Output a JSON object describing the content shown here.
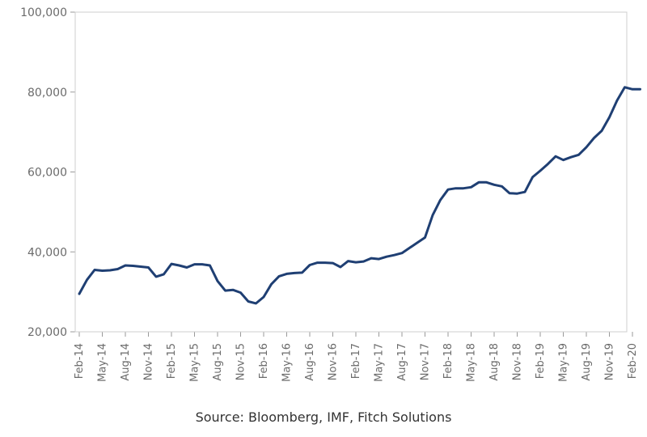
{
  "chart_data": {
    "type": "line",
    "title": "",
    "xlabel": "",
    "ylabel": "",
    "ylim": [
      20000,
      100000
    ],
    "yticks": [
      "20,000",
      "40,000",
      "60,000",
      "80,000",
      "100,000"
    ],
    "ytick_values": [
      20000,
      40000,
      60000,
      80000,
      100000
    ],
    "xticks": [
      "Feb-14",
      "May-14",
      "Aug-14",
      "Nov-14",
      "Feb-15",
      "May-15",
      "Aug-15",
      "Nov-15",
      "Feb-16",
      "May-16",
      "Aug-16",
      "Nov-16",
      "Feb-17",
      "May-17",
      "Aug-17",
      "Nov-17",
      "Feb-18",
      "May-18",
      "Aug-18",
      "Nov-18",
      "Feb-19",
      "May-19",
      "Aug-19",
      "Nov-19",
      "Feb-20"
    ],
    "grid": false,
    "line_color": "#1f3f73",
    "series": [
      {
        "x": [
          "Feb-14",
          "Mar-14",
          "Apr-14",
          "May-14",
          "Jun-14",
          "Jul-14",
          "Aug-14",
          "Sep-14",
          "Oct-14",
          "Nov-14",
          "Dec-14",
          "Jan-15",
          "Feb-15",
          "Mar-15",
          "Apr-15",
          "May-15",
          "Jun-15",
          "Jul-15",
          "Aug-15",
          "Sep-15",
          "Oct-15",
          "Nov-15",
          "Dec-15",
          "Jan-16",
          "Feb-16",
          "Mar-16",
          "Apr-16",
          "May-16",
          "Jun-16",
          "Jul-16",
          "Aug-16",
          "Sep-16",
          "Oct-16",
          "Nov-16",
          "Dec-16",
          "Jan-17",
          "Feb-17",
          "Mar-17",
          "Apr-17",
          "May-17",
          "Jun-17",
          "Jul-17",
          "Aug-17",
          "Sep-17",
          "Oct-17",
          "Nov-17",
          "Dec-17",
          "Jan-18",
          "Feb-18",
          "Mar-18",
          "Apr-18",
          "May-18",
          "Jun-18",
          "Jul-18",
          "Aug-18",
          "Sep-18",
          "Oct-18",
          "Nov-18",
          "Dec-18",
          "Jan-19",
          "Feb-19",
          "Mar-19",
          "Apr-19",
          "May-19",
          "Jun-19",
          "Jul-19",
          "Aug-19",
          "Sep-19",
          "Oct-19",
          "Nov-19",
          "Dec-19",
          "Jan-20",
          "Feb-20",
          "Mar-20"
        ],
        "values": [
          29500,
          33000,
          35500,
          35300,
          35400,
          35700,
          36600,
          36500,
          36300,
          36100,
          33800,
          34400,
          37000,
          36600,
          36100,
          36900,
          36900,
          36600,
          32700,
          30300,
          30500,
          29800,
          27600,
          27100,
          28700,
          31900,
          33900,
          34500,
          34700,
          34800,
          36700,
          37300,
          37300,
          37200,
          36200,
          37700,
          37400,
          37600,
          38400,
          38200,
          38800,
          39200,
          39700,
          41000,
          42300,
          43600,
          49200,
          53000,
          55600,
          55900,
          55900,
          56200,
          57400,
          57400,
          56800,
          56400,
          54700,
          54600,
          55000,
          58700,
          60300,
          62000,
          63900,
          63000,
          63700,
          64300,
          66200,
          68500,
          70300,
          73700,
          77900,
          81200,
          80700,
          80700
        ]
      }
    ],
    "source": "Source: Bloomberg, IMF, Fitch Solutions"
  }
}
